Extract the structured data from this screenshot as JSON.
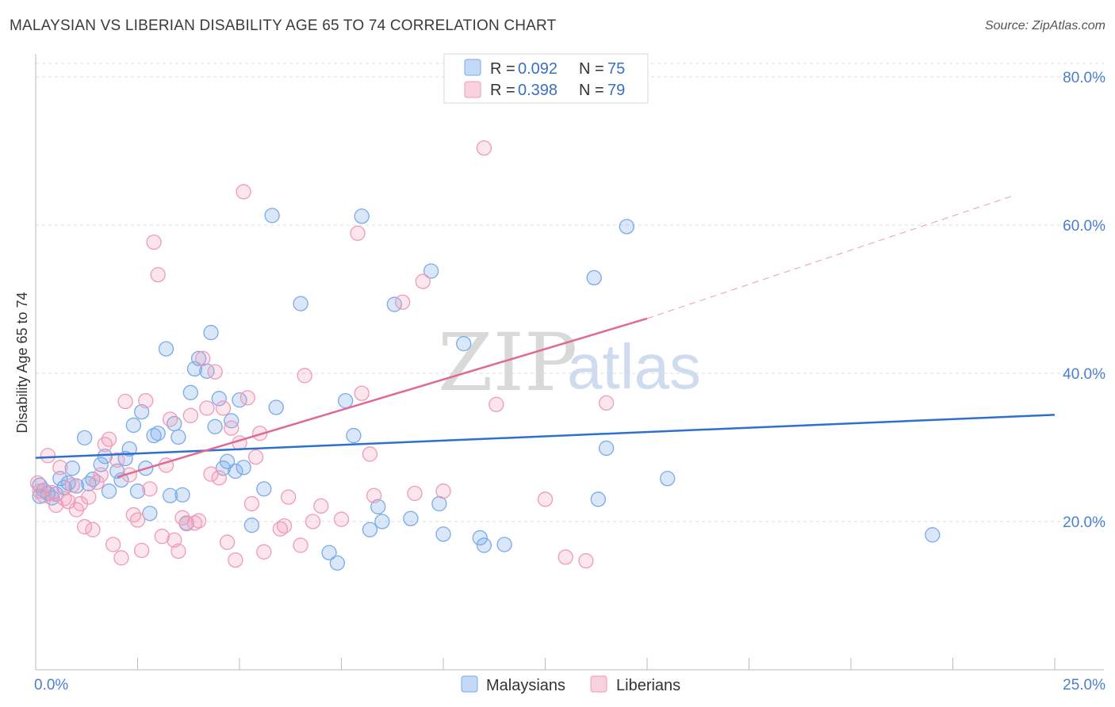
{
  "header": {
    "title": "MALAYSIAN VS LIBERIAN DISABILITY AGE 65 TO 74 CORRELATION CHART",
    "source": "Source: ZipAtlas.com"
  },
  "watermark": {
    "zip": "ZIP",
    "atlas": "atlas"
  },
  "legend": {
    "rows": [
      {
        "r_label": "R = ",
        "r_value": "0.092",
        "n_label": "N = ",
        "n_value": "75",
        "color": "#7aaae8"
      },
      {
        "r_label": "R = ",
        "r_value": "0.398",
        "n_label": "N = ",
        "n_value": "79",
        "color": "#f09ab8"
      }
    ]
  },
  "bottom_legend": [
    {
      "label": "Malaysians",
      "color": "#7aaae8"
    },
    {
      "label": "Liberians",
      "color": "#f09ab8"
    }
  ],
  "chart_data": {
    "type": "scatter",
    "title": "MALAYSIAN VS LIBERIAN DISABILITY AGE 65 TO 74 CORRELATION CHART",
    "xlabel": "",
    "ylabel": "Disability Age 65 to 74",
    "xlim": [
      0,
      25
    ],
    "ylim": [
      0,
      80
    ],
    "x_tick_labels": [
      {
        "value": 0,
        "label": "0.0%"
      },
      {
        "value": 25,
        "label": "25.0%"
      }
    ],
    "y_tick_labels": [
      {
        "value": 20,
        "label": "20.0%"
      },
      {
        "value": 40,
        "label": "40.0%"
      },
      {
        "value": 60,
        "label": "60.0%"
      },
      {
        "value": 80,
        "label": "80.0%"
      }
    ],
    "grid": true,
    "legend_position": "top-center",
    "series": [
      {
        "name": "Malaysians",
        "color": "#7aaae8",
        "trend": {
          "x0": 0,
          "y0": 28.6,
          "x1": 25,
          "y1": 34.4,
          "extended": false
        },
        "points": [
          [
            0.1,
            23.4
          ],
          [
            0.1,
            24.9
          ],
          [
            0.2,
            24.2
          ],
          [
            0.3,
            23.8
          ],
          [
            0.4,
            23.2
          ],
          [
            0.5,
            23.7
          ],
          [
            0.6,
            25.8
          ],
          [
            0.7,
            24.6
          ],
          [
            0.8,
            25.2
          ],
          [
            0.9,
            27.2
          ],
          [
            1.0,
            24.8
          ],
          [
            1.2,
            31.3
          ],
          [
            1.3,
            25.1
          ],
          [
            1.4,
            25.7
          ],
          [
            1.6,
            27.7
          ],
          [
            1.7,
            28.8
          ],
          [
            1.8,
            24.1
          ],
          [
            2.0,
            26.8
          ],
          [
            2.1,
            25.6
          ],
          [
            2.2,
            28.5
          ],
          [
            2.3,
            29.8
          ],
          [
            2.4,
            33.0
          ],
          [
            2.5,
            24.1
          ],
          [
            2.6,
            34.8
          ],
          [
            2.7,
            27.2
          ],
          [
            2.8,
            21.1
          ],
          [
            2.9,
            31.6
          ],
          [
            3.0,
            31.9
          ],
          [
            3.2,
            43.3
          ],
          [
            3.3,
            23.5
          ],
          [
            3.4,
            33.2
          ],
          [
            3.5,
            31.4
          ],
          [
            3.6,
            23.6
          ],
          [
            3.7,
            19.8
          ],
          [
            3.8,
            37.4
          ],
          [
            3.9,
            40.6
          ],
          [
            4.0,
            42.0
          ],
          [
            4.2,
            40.3
          ],
          [
            4.3,
            45.5
          ],
          [
            4.4,
            32.8
          ],
          [
            4.5,
            36.6
          ],
          [
            4.6,
            27.2
          ],
          [
            4.7,
            28.1
          ],
          [
            4.8,
            33.6
          ],
          [
            4.9,
            26.8
          ],
          [
            5.0,
            36.4
          ],
          [
            5.1,
            27.3
          ],
          [
            5.3,
            19.5
          ],
          [
            5.6,
            24.4
          ],
          [
            5.8,
            61.3
          ],
          [
            5.9,
            35.4
          ],
          [
            6.5,
            49.4
          ],
          [
            7.2,
            15.8
          ],
          [
            7.4,
            14.4
          ],
          [
            7.6,
            36.3
          ],
          [
            7.8,
            31.6
          ],
          [
            8.0,
            61.2
          ],
          [
            8.2,
            18.9
          ],
          [
            8.4,
            22.0
          ],
          [
            8.5,
            20.0
          ],
          [
            8.8,
            49.3
          ],
          [
            9.2,
            20.4
          ],
          [
            9.7,
            53.8
          ],
          [
            9.9,
            22.4
          ],
          [
            10.0,
            18.3
          ],
          [
            10.5,
            44.0
          ],
          [
            10.9,
            17.8
          ],
          [
            11.0,
            16.8
          ],
          [
            11.5,
            16.9
          ],
          [
            13.7,
            52.9
          ],
          [
            13.8,
            23.0
          ],
          [
            14.0,
            29.9
          ],
          [
            14.5,
            59.8
          ],
          [
            15.5,
            25.8
          ],
          [
            22.0,
            18.2
          ]
        ]
      },
      {
        "name": "Liberians",
        "color": "#f09ab8",
        "trend": {
          "x0": 2.0,
          "y0": 26.0,
          "x1": 15.0,
          "y1": 47.4,
          "extended": true,
          "ext_x1": 24.0,
          "ext_y1": 64.0
        },
        "points": [
          [
            0.05,
            25.2
          ],
          [
            0.1,
            24.1
          ],
          [
            0.2,
            23.5
          ],
          [
            0.3,
            28.9
          ],
          [
            0.4,
            23.9
          ],
          [
            0.5,
            22.2
          ],
          [
            0.6,
            27.3
          ],
          [
            0.7,
            23.1
          ],
          [
            0.8,
            22.7
          ],
          [
            0.9,
            24.9
          ],
          [
            1.0,
            21.6
          ],
          [
            1.1,
            22.4
          ],
          [
            1.2,
            19.3
          ],
          [
            1.3,
            23.3
          ],
          [
            1.4,
            18.9
          ],
          [
            1.5,
            25.3
          ],
          [
            1.6,
            26.3
          ],
          [
            1.7,
            30.4
          ],
          [
            1.8,
            31.1
          ],
          [
            1.9,
            16.9
          ],
          [
            2.0,
            28.3
          ],
          [
            2.1,
            15.1
          ],
          [
            2.2,
            36.2
          ],
          [
            2.3,
            26.3
          ],
          [
            2.4,
            20.9
          ],
          [
            2.5,
            20.2
          ],
          [
            2.6,
            16.1
          ],
          [
            2.7,
            36.3
          ],
          [
            2.8,
            24.4
          ],
          [
            2.9,
            57.7
          ],
          [
            3.0,
            53.3
          ],
          [
            3.1,
            18.0
          ],
          [
            3.2,
            27.6
          ],
          [
            3.3,
            33.8
          ],
          [
            3.4,
            17.5
          ],
          [
            3.5,
            16.0
          ],
          [
            3.6,
            20.5
          ],
          [
            3.7,
            19.7
          ],
          [
            3.8,
            34.3
          ],
          [
            3.9,
            19.8
          ],
          [
            4.0,
            20.1
          ],
          [
            4.1,
            42.0
          ],
          [
            4.2,
            35.3
          ],
          [
            4.3,
            26.4
          ],
          [
            4.4,
            40.2
          ],
          [
            4.5,
            25.9
          ],
          [
            4.6,
            35.3
          ],
          [
            4.7,
            17.2
          ],
          [
            4.8,
            32.6
          ],
          [
            4.9,
            14.8
          ],
          [
            5.0,
            30.6
          ],
          [
            5.1,
            64.5
          ],
          [
            5.2,
            36.7
          ],
          [
            5.3,
            22.4
          ],
          [
            5.4,
            28.7
          ],
          [
            5.5,
            31.9
          ],
          [
            5.6,
            15.9
          ],
          [
            6.0,
            19.0
          ],
          [
            6.1,
            19.4
          ],
          [
            6.2,
            23.3
          ],
          [
            6.5,
            16.8
          ],
          [
            6.6,
            39.7
          ],
          [
            6.8,
            20.0
          ],
          [
            7.0,
            22.1
          ],
          [
            7.5,
            20.3
          ],
          [
            7.9,
            58.9
          ],
          [
            8.0,
            37.3
          ],
          [
            8.2,
            29.1
          ],
          [
            8.3,
            23.5
          ],
          [
            9.0,
            49.6
          ],
          [
            9.3,
            23.8
          ],
          [
            9.5,
            52.4
          ],
          [
            10.0,
            24.1
          ],
          [
            11.0,
            70.4
          ],
          [
            11.3,
            35.8
          ],
          [
            12.5,
            23.0
          ],
          [
            13.0,
            15.2
          ],
          [
            13.5,
            14.7
          ],
          [
            14.0,
            36.0
          ]
        ]
      }
    ]
  }
}
